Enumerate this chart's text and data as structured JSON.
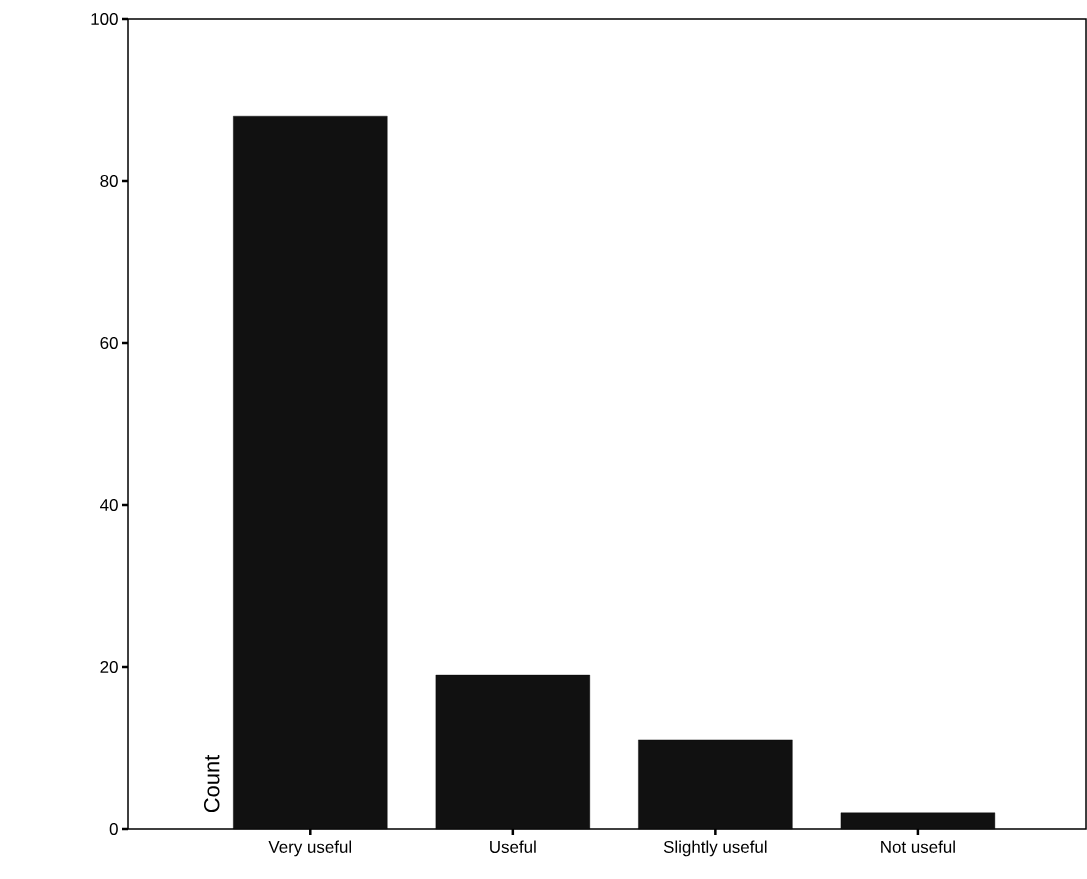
{
  "chart_data": {
    "type": "bar",
    "ylabel": "Count",
    "categories": [
      "Very useful",
      "Useful",
      "Slightly useful",
      "Not useful"
    ],
    "values": [
      88,
      19,
      11,
      2
    ],
    "color": "#111111",
    "ylim": [
      0,
      100
    ],
    "yticks": [
      0,
      20,
      40,
      60,
      80,
      100
    ],
    "grid": false
  }
}
